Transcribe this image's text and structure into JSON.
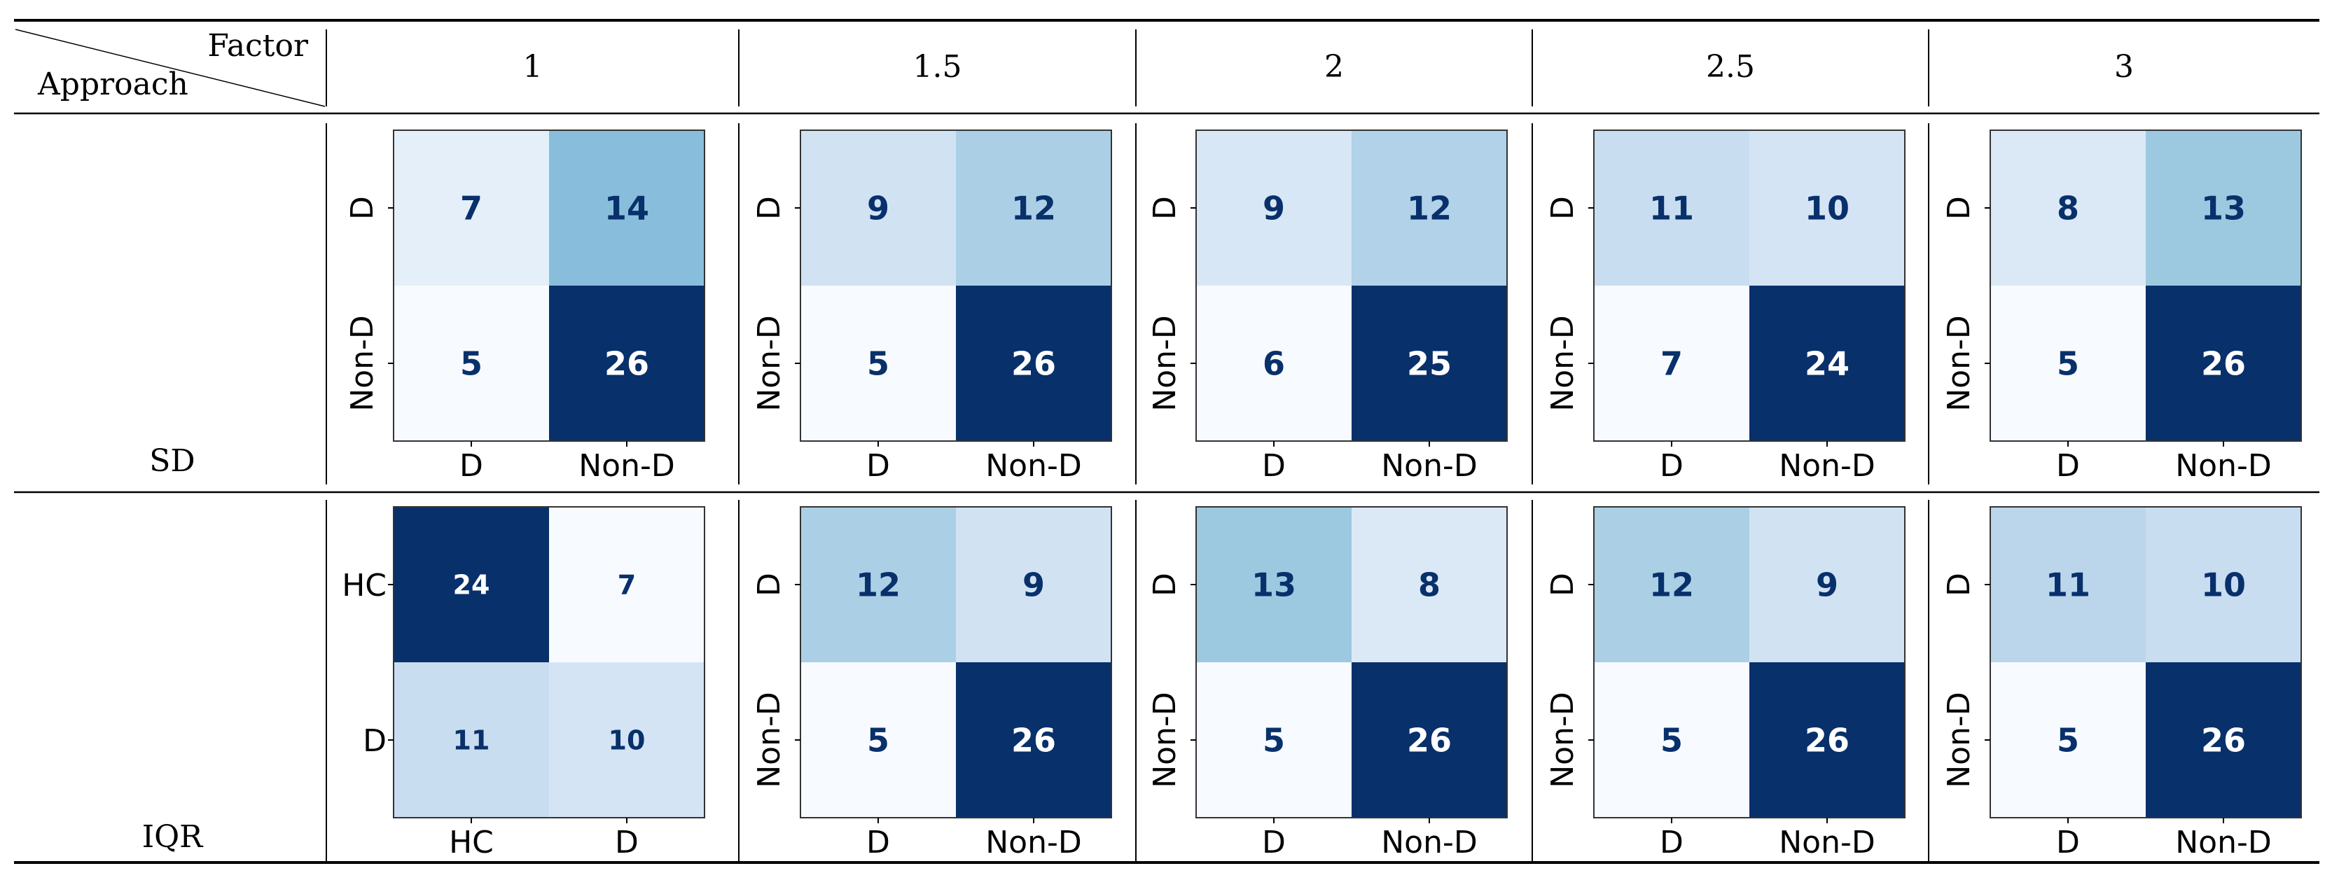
{
  "header": {
    "factor_label": "Factor",
    "approach_label": "Approach",
    "factors": [
      "1",
      "1.5",
      "2",
      "2.5",
      "3"
    ]
  },
  "rows": [
    {
      "approach": "SD",
      "matrices": [
        {
          "row_labels": [
            "D",
            "Non-D"
          ],
          "col_labels": [
            "D",
            "Non-D"
          ],
          "values": [
            [
              7,
              14
            ],
            [
              5,
              26
            ]
          ]
        },
        {
          "row_labels": [
            "D",
            "Non-D"
          ],
          "col_labels": [
            "D",
            "Non-D"
          ],
          "values": [
            [
              9,
              12
            ],
            [
              5,
              26
            ]
          ]
        },
        {
          "row_labels": [
            "D",
            "Non-D"
          ],
          "col_labels": [
            "D",
            "Non-D"
          ],
          "values": [
            [
              9,
              12
            ],
            [
              6,
              25
            ]
          ]
        },
        {
          "row_labels": [
            "D",
            "Non-D"
          ],
          "col_labels": [
            "D",
            "Non-D"
          ],
          "values": [
            [
              11,
              10
            ],
            [
              7,
              24
            ]
          ]
        },
        {
          "row_labels": [
            "D",
            "Non-D"
          ],
          "col_labels": [
            "D",
            "Non-D"
          ],
          "values": [
            [
              8,
              13
            ],
            [
              5,
              26
            ]
          ]
        }
      ]
    },
    {
      "approach": "IQR",
      "matrices": [
        {
          "row_labels": [
            "HC",
            "D"
          ],
          "col_labels": [
            "HC",
            "D"
          ],
          "values": [
            [
              24,
              7
            ],
            [
              11,
              10
            ]
          ],
          "small_text": true
        },
        {
          "row_labels": [
            "D",
            "Non-D"
          ],
          "col_labels": [
            "D",
            "Non-D"
          ],
          "values": [
            [
              12,
              9
            ],
            [
              5,
              26
            ]
          ]
        },
        {
          "row_labels": [
            "D",
            "Non-D"
          ],
          "col_labels": [
            "D",
            "Non-D"
          ],
          "values": [
            [
              13,
              8
            ],
            [
              5,
              26
            ]
          ]
        },
        {
          "row_labels": [
            "D",
            "Non-D"
          ],
          "col_labels": [
            "D",
            "Non-D"
          ],
          "values": [
            [
              12,
              9
            ],
            [
              5,
              26
            ]
          ]
        },
        {
          "row_labels": [
            "D",
            "Non-D"
          ],
          "col_labels": [
            "D",
            "Non-D"
          ],
          "values": [
            [
              11,
              10
            ],
            [
              5,
              26
            ]
          ]
        }
      ]
    }
  ],
  "chart_data": {
    "type": "heatmap",
    "colormap": "Blues",
    "column_header": "Factor",
    "row_header": "Approach",
    "factors": [
      "1",
      "1.5",
      "2",
      "2.5",
      "3"
    ],
    "approaches": [
      "SD",
      "IQR"
    ],
    "matrices": [
      {
        "approach": "SD",
        "factor": "1",
        "row_labels": [
          "D",
          "Non-D"
        ],
        "col_labels": [
          "D",
          "Non-D"
        ],
        "values": [
          [
            7,
            14
          ],
          [
            5,
            26
          ]
        ]
      },
      {
        "approach": "SD",
        "factor": "1.5",
        "row_labels": [
          "D",
          "Non-D"
        ],
        "col_labels": [
          "D",
          "Non-D"
        ],
        "values": [
          [
            9,
            12
          ],
          [
            5,
            26
          ]
        ]
      },
      {
        "approach": "SD",
        "factor": "2",
        "row_labels": [
          "D",
          "Non-D"
        ],
        "col_labels": [
          "D",
          "Non-D"
        ],
        "values": [
          [
            9,
            12
          ],
          [
            6,
            25
          ]
        ]
      },
      {
        "approach": "SD",
        "factor": "2.5",
        "row_labels": [
          "D",
          "Non-D"
        ],
        "col_labels": [
          "D",
          "Non-D"
        ],
        "values": [
          [
            11,
            10
          ],
          [
            7,
            24
          ]
        ]
      },
      {
        "approach": "SD",
        "factor": "3",
        "row_labels": [
          "D",
          "Non-D"
        ],
        "col_labels": [
          "D",
          "Non-D"
        ],
        "values": [
          [
            8,
            13
          ],
          [
            5,
            26
          ]
        ]
      },
      {
        "approach": "IQR",
        "factor": "1",
        "row_labels": [
          "HC",
          "D"
        ],
        "col_labels": [
          "HC",
          "D"
        ],
        "values": [
          [
            24,
            7
          ],
          [
            11,
            10
          ]
        ]
      },
      {
        "approach": "IQR",
        "factor": "1.5",
        "row_labels": [
          "D",
          "Non-D"
        ],
        "col_labels": [
          "D",
          "Non-D"
        ],
        "values": [
          [
            12,
            9
          ],
          [
            5,
            26
          ]
        ]
      },
      {
        "approach": "IQR",
        "factor": "2",
        "row_labels": [
          "D",
          "Non-D"
        ],
        "col_labels": [
          "D",
          "Non-D"
        ],
        "values": [
          [
            13,
            8
          ],
          [
            5,
            26
          ]
        ]
      },
      {
        "approach": "IQR",
        "factor": "2.5",
        "row_labels": [
          "D",
          "Non-D"
        ],
        "col_labels": [
          "D",
          "Non-D"
        ],
        "values": [
          [
            12,
            9
          ],
          [
            5,
            26
          ]
        ]
      },
      {
        "approach": "IQR",
        "factor": "3",
        "row_labels": [
          "D",
          "Non-D"
        ],
        "col_labels": [
          "D",
          "Non-D"
        ],
        "values": [
          [
            11,
            10
          ],
          [
            5,
            26
          ]
        ]
      }
    ]
  }
}
